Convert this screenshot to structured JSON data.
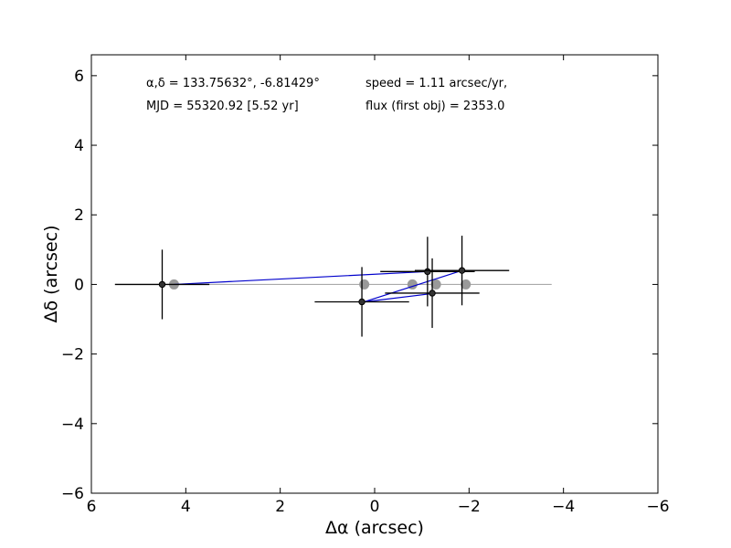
{
  "chart_data": {
    "type": "scatter",
    "title": "",
    "xlabel": "Δα (arcsec)",
    "ylabel": "Δδ (arcsec)",
    "xlim": [
      6,
      -6
    ],
    "ylim": [
      -6,
      6.6
    ],
    "x_ticks": [
      6,
      4,
      2,
      0,
      -2,
      -4,
      -6
    ],
    "y_ticks": [
      -6,
      -4,
      -2,
      0,
      2,
      4,
      6
    ],
    "x_tick_labels": [
      "6",
      "4",
      "2",
      "0",
      "−2",
      "−4",
      "−6"
    ],
    "y_tick_labels": [
      "−6",
      "−4",
      "−2",
      "0",
      "2",
      "4",
      "6"
    ],
    "grid": false,
    "annotations": [
      "α,δ = 133.75632°, -6.81429°",
      "MJD = 55320.92 [5.52 yr]",
      "speed = 1.11 arcsec/yr,",
      "flux (first obj) = 2353.0"
    ],
    "reference_line": {
      "x": [
        5.5,
        -3.75
      ],
      "y": [
        0,
        0
      ],
      "color": "#aaaaaa"
    },
    "series": [
      {
        "marker": "gray-circle",
        "color": "#999999",
        "x": [
          4.25,
          0.22,
          -0.8,
          -1.3,
          -1.93
        ],
        "y": [
          0,
          0,
          0,
          0,
          0
        ]
      },
      {
        "marker": "black-dot",
        "color": "#000000",
        "x": [
          4.5,
          0.27,
          -1.12,
          -1.22,
          -1.85
        ],
        "y": [
          0,
          -0.5,
          0.37,
          -0.25,
          0.4
        ],
        "xerr": [
          1.0,
          1.0,
          1.0,
          1.0,
          1.0
        ],
        "yerr": [
          1.0,
          1.0,
          1.0,
          1.0,
          1.0
        ]
      },
      {
        "marker": "line",
        "color": "#0000cc",
        "x": [
          4.25,
          -1.12,
          -1.85,
          0.22,
          -1.3
        ],
        "y": [
          0,
          0.37,
          0.4,
          -0.5,
          -0.25
        ]
      }
    ]
  }
}
